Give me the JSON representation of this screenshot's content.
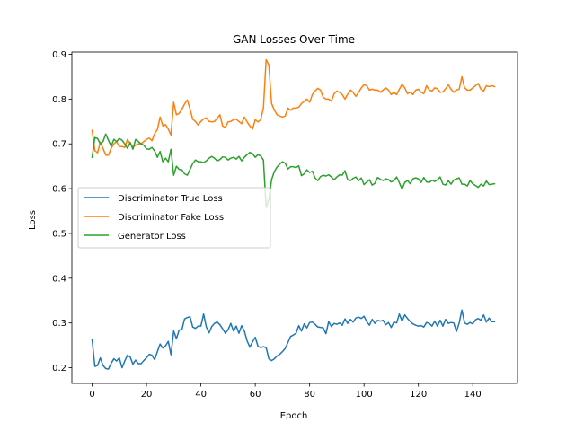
{
  "chart_data": {
    "type": "line",
    "title": "GAN Losses Over Time",
    "xlabel": "Epoch",
    "ylabel": "Loss",
    "xlim": [
      -7.45,
      156.45
    ],
    "ylim": [
      0.165,
      0.905
    ],
    "xticks": [
      0,
      20,
      40,
      60,
      80,
      100,
      120,
      140
    ],
    "yticks": [
      0.2,
      0.3,
      0.4,
      0.5,
      0.6,
      0.7,
      0.8,
      0.9
    ],
    "grid": false,
    "legend_position": "center-left",
    "x_start": 0,
    "x_step": 1,
    "series": [
      {
        "name": "Discriminator True Loss",
        "color": "#1f77b4",
        "values": [
          0.262,
          0.203,
          0.205,
          0.222,
          0.205,
          0.198,
          0.197,
          0.21,
          0.22,
          0.215,
          0.222,
          0.2,
          0.215,
          0.228,
          0.224,
          0.208,
          0.217,
          0.209,
          0.209,
          0.216,
          0.222,
          0.23,
          0.228,
          0.218,
          0.236,
          0.253,
          0.244,
          0.249,
          0.259,
          0.229,
          0.282,
          0.265,
          0.284,
          0.285,
          0.309,
          0.312,
          0.314,
          0.291,
          0.288,
          0.293,
          0.293,
          0.32,
          0.291,
          0.278,
          0.292,
          0.299,
          0.302,
          0.296,
          0.287,
          0.277,
          0.285,
          0.299,
          0.282,
          0.293,
          0.277,
          0.294,
          0.282,
          0.26,
          0.246,
          0.258,
          0.268,
          0.248,
          0.245,
          0.247,
          0.245,
          0.22,
          0.216,
          0.22,
          0.226,
          0.23,
          0.236,
          0.243,
          0.256,
          0.27,
          0.273,
          0.277,
          0.294,
          0.282,
          0.298,
          0.289,
          0.301,
          0.302,
          0.297,
          0.291,
          0.29,
          0.289,
          0.276,
          0.303,
          0.292,
          0.299,
          0.297,
          0.3,
          0.295,
          0.309,
          0.299,
          0.308,
          0.302,
          0.311,
          0.313,
          0.31,
          0.315,
          0.303,
          0.295,
          0.308,
          0.299,
          0.306,
          0.304,
          0.306,
          0.296,
          0.301,
          0.29,
          0.302,
          0.3,
          0.32,
          0.304,
          0.318,
          0.31,
          0.303,
          0.298,
          0.295,
          0.293,
          0.294,
          0.291,
          0.301,
          0.299,
          0.293,
          0.304,
          0.293,
          0.306,
          0.293,
          0.308,
          0.299,
          0.301,
          0.3,
          0.281,
          0.3,
          0.329,
          0.3,
          0.297,
          0.301,
          0.298,
          0.307,
          0.31,
          0.306,
          0.318,
          0.302,
          0.311,
          0.303,
          0.303
        ]
      },
      {
        "name": "Discriminator Fake Loss",
        "color": "#ff7f0e",
        "values": [
          0.73,
          0.685,
          0.68,
          0.704,
          0.69,
          0.675,
          0.675,
          0.69,
          0.7,
          0.705,
          0.694,
          0.694,
          0.692,
          0.71,
          0.7,
          0.693,
          0.697,
          0.7,
          0.7,
          0.705,
          0.71,
          0.713,
          0.707,
          0.723,
          0.732,
          0.76,
          0.74,
          0.743,
          0.733,
          0.72,
          0.793,
          0.765,
          0.768,
          0.777,
          0.789,
          0.798,
          0.778,
          0.755,
          0.75,
          0.742,
          0.75,
          0.756,
          0.758,
          0.75,
          0.749,
          0.75,
          0.757,
          0.765,
          0.74,
          0.737,
          0.749,
          0.75,
          0.754,
          0.755,
          0.75,
          0.745,
          0.76,
          0.749,
          0.74,
          0.733,
          0.754,
          0.749,
          0.754,
          0.78,
          0.888,
          0.876,
          0.79,
          0.776,
          0.765,
          0.762,
          0.76,
          0.762,
          0.78,
          0.775,
          0.78,
          0.78,
          0.782,
          0.79,
          0.795,
          0.8,
          0.793,
          0.81,
          0.818,
          0.824,
          0.82,
          0.804,
          0.8,
          0.8,
          0.795,
          0.812,
          0.818,
          0.815,
          0.81,
          0.8,
          0.811,
          0.82,
          0.815,
          0.806,
          0.815,
          0.825,
          0.832,
          0.83,
          0.82,
          0.822,
          0.82,
          0.82,
          0.815,
          0.82,
          0.825,
          0.82,
          0.81,
          0.815,
          0.81,
          0.822,
          0.833,
          0.825,
          0.812,
          0.815,
          0.81,
          0.82,
          0.822,
          0.815,
          0.812,
          0.83,
          0.82,
          0.818,
          0.825,
          0.823,
          0.815,
          0.816,
          0.823,
          0.832,
          0.822,
          0.815,
          0.82,
          0.822,
          0.85,
          0.825,
          0.82,
          0.82,
          0.825,
          0.83,
          0.835,
          0.822,
          0.818,
          0.83,
          0.828,
          0.83,
          0.828
        ]
      },
      {
        "name": "Generator Loss",
        "color": "#2ca02c",
        "values": [
          0.67,
          0.714,
          0.712,
          0.7,
          0.705,
          0.722,
          0.708,
          0.695,
          0.71,
          0.705,
          0.712,
          0.708,
          0.7,
          0.69,
          0.703,
          0.688,
          0.71,
          0.705,
          0.7,
          0.697,
          0.689,
          0.688,
          0.692,
          0.684,
          0.67,
          0.683,
          0.66,
          0.668,
          0.66,
          0.688,
          0.63,
          0.65,
          0.643,
          0.642,
          0.633,
          0.63,
          0.643,
          0.656,
          0.664,
          0.66,
          0.66,
          0.658,
          0.662,
          0.668,
          0.672,
          0.668,
          0.662,
          0.665,
          0.671,
          0.67,
          0.664,
          0.668,
          0.67,
          0.666,
          0.672,
          0.662,
          0.67,
          0.676,
          0.681,
          0.678,
          0.67,
          0.676,
          0.673,
          0.664,
          0.558,
          0.576,
          0.62,
          0.638,
          0.648,
          0.655,
          0.66,
          0.657,
          0.644,
          0.649,
          0.649,
          0.647,
          0.651,
          0.629,
          0.633,
          0.642,
          0.636,
          0.639,
          0.624,
          0.618,
          0.627,
          0.63,
          0.628,
          0.631,
          0.626,
          0.62,
          0.626,
          0.631,
          0.63,
          0.64,
          0.62,
          0.618,
          0.623,
          0.626,
          0.618,
          0.624,
          0.609,
          0.615,
          0.62,
          0.608,
          0.612,
          0.625,
          0.621,
          0.618,
          0.622,
          0.62,
          0.615,
          0.618,
          0.626,
          0.613,
          0.599,
          0.614,
          0.618,
          0.611,
          0.622,
          0.624,
          0.622,
          0.614,
          0.625,
          0.615,
          0.614,
          0.619,
          0.616,
          0.62,
          0.626,
          0.61,
          0.608,
          0.618,
          0.61,
          0.619,
          0.622,
          0.624,
          0.61,
          0.61,
          0.606,
          0.618,
          0.611,
          0.607,
          0.603,
          0.61,
          0.606,
          0.617,
          0.609,
          0.61,
          0.611
        ]
      }
    ]
  }
}
